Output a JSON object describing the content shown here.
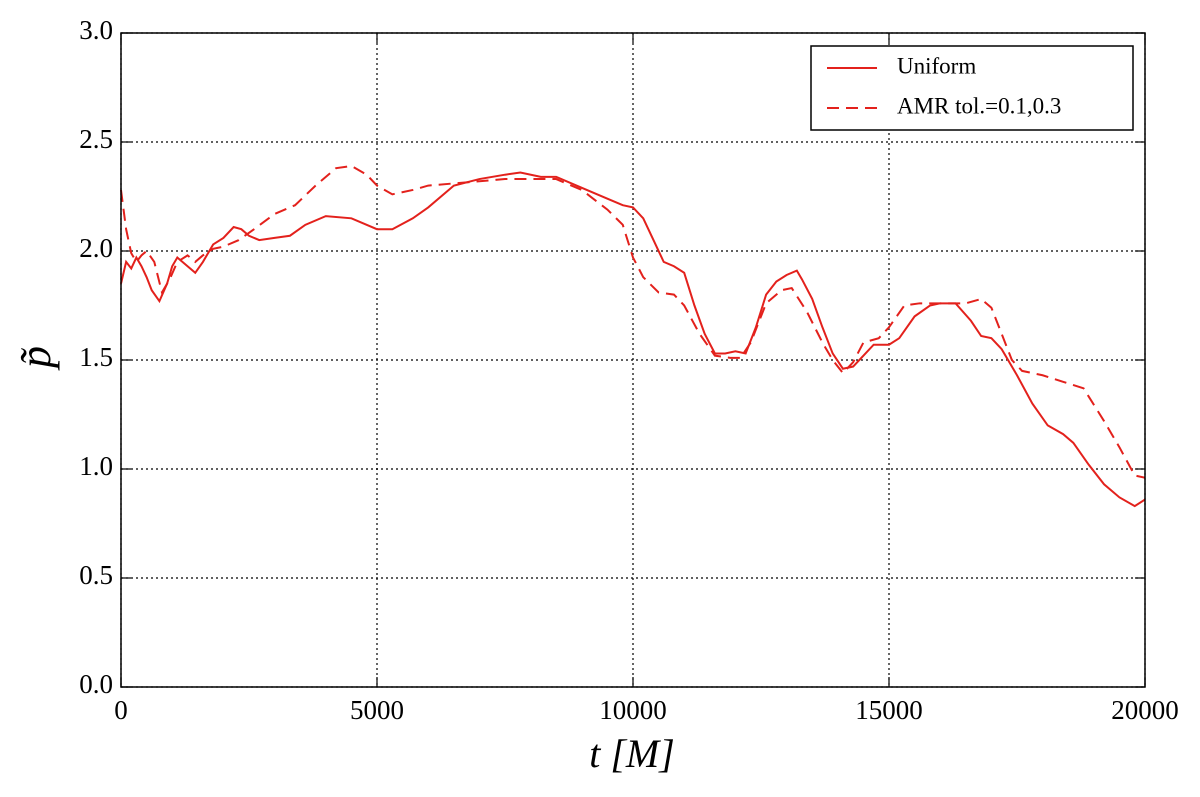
{
  "chart_data": {
    "type": "line",
    "xlabel": "t  [M]",
    "ylabel": "p̃",
    "xlim": [
      0,
      20000
    ],
    "ylim": [
      0,
      3.0
    ],
    "xticks": [
      0,
      5000,
      10000,
      15000,
      20000
    ],
    "yticks": [
      {
        "value": 0,
        "label": "0.0"
      },
      0.5,
      {
        "value": 1,
        "label": "1.0"
      },
      1.5,
      {
        "value": 2,
        "label": "2.0"
      },
      2.5,
      {
        "value": 3,
        "label": "3.0"
      }
    ],
    "grid": true,
    "legend": "upper right",
    "series": [
      {
        "name": "Uniform",
        "color": "#e3211c",
        "linestyle": "solid",
        "x": [
          0,
          100,
          200,
          300,
          400,
          500,
          600,
          750,
          900,
          1000,
          1100,
          1300,
          1450,
          1600,
          1800,
          2000,
          2200,
          2350,
          2500,
          2700,
          3000,
          3300,
          3600,
          4000,
          4500,
          5000,
          5300,
          5700,
          6000,
          6500,
          7000,
          7500,
          7800,
          8200,
          8500,
          9000,
          9500,
          9800,
          10000,
          10200,
          10400,
          10600,
          10800,
          11000,
          11200,
          11400,
          11600,
          11800,
          12000,
          12200,
          12400,
          12600,
          12800,
          13000,
          13200,
          13300,
          13500,
          13700,
          13900,
          14100,
          14300,
          14500,
          14700,
          15000,
          15200,
          15500,
          15800,
          16000,
          16300,
          16600,
          16800,
          17000,
          17200,
          17500,
          17800,
          18100,
          18400,
          18600,
          18900,
          19200,
          19500,
          19800,
          20000
        ],
        "values": [
          1.85,
          1.95,
          1.92,
          1.97,
          1.93,
          1.88,
          1.82,
          1.77,
          1.85,
          1.93,
          1.97,
          1.93,
          1.9,
          1.95,
          2.03,
          2.06,
          2.11,
          2.1,
          2.07,
          2.05,
          2.06,
          2.07,
          2.12,
          2.16,
          2.15,
          2.1,
          2.1,
          2.15,
          2.2,
          2.3,
          2.33,
          2.35,
          2.36,
          2.34,
          2.34,
          2.29,
          2.24,
          2.21,
          2.2,
          2.15,
          2.05,
          1.95,
          1.93,
          1.9,
          1.75,
          1.62,
          1.53,
          1.53,
          1.54,
          1.53,
          1.65,
          1.8,
          1.86,
          1.89,
          1.91,
          1.87,
          1.78,
          1.65,
          1.53,
          1.46,
          1.47,
          1.52,
          1.57,
          1.57,
          1.6,
          1.7,
          1.75,
          1.76,
          1.76,
          1.68,
          1.61,
          1.6,
          1.55,
          1.43,
          1.3,
          1.2,
          1.16,
          1.12,
          1.02,
          0.93,
          0.87,
          0.83,
          0.86
        ]
      },
      {
        "name": "AMR tol.=0.1,0.3",
        "color": "#e3211c",
        "linestyle": "dashed",
        "x": [
          0,
          100,
          200,
          300,
          400,
          500,
          650,
          800,
          950,
          1100,
          1300,
          1450,
          1600,
          1800,
          2000,
          2300,
          2600,
          3000,
          3400,
          3800,
          4200,
          4500,
          4800,
          5000,
          5300,
          5700,
          6000,
          6500,
          7000,
          7500,
          8000,
          8500,
          9000,
          9500,
          9800,
          10000,
          10200,
          10500,
          10800,
          11000,
          11300,
          11600,
          11900,
          12100,
          12300,
          12600,
          12900,
          13100,
          13400,
          13700,
          13900,
          14100,
          14300,
          14500,
          14800,
          15000,
          15300,
          15600,
          16000,
          16500,
          16800,
          17000,
          17400,
          17600,
          18000,
          18400,
          18800,
          19200,
          19500,
          19800,
          20000
        ],
        "values": [
          2.28,
          2.1,
          1.99,
          1.95,
          1.98,
          2.0,
          1.95,
          1.81,
          1.87,
          1.95,
          1.98,
          1.95,
          1.98,
          2.01,
          2.02,
          2.05,
          2.1,
          2.17,
          2.21,
          2.3,
          2.38,
          2.39,
          2.35,
          2.3,
          2.26,
          2.28,
          2.3,
          2.31,
          2.32,
          2.33,
          2.33,
          2.33,
          2.28,
          2.19,
          2.12,
          1.97,
          1.88,
          1.81,
          1.8,
          1.75,
          1.62,
          1.52,
          1.51,
          1.51,
          1.58,
          1.76,
          1.82,
          1.83,
          1.72,
          1.58,
          1.5,
          1.44,
          1.49,
          1.58,
          1.6,
          1.65,
          1.75,
          1.76,
          1.76,
          1.76,
          1.78,
          1.74,
          1.5,
          1.45,
          1.43,
          1.4,
          1.37,
          1.22,
          1.1,
          0.97,
          0.96
        ]
      }
    ]
  }
}
